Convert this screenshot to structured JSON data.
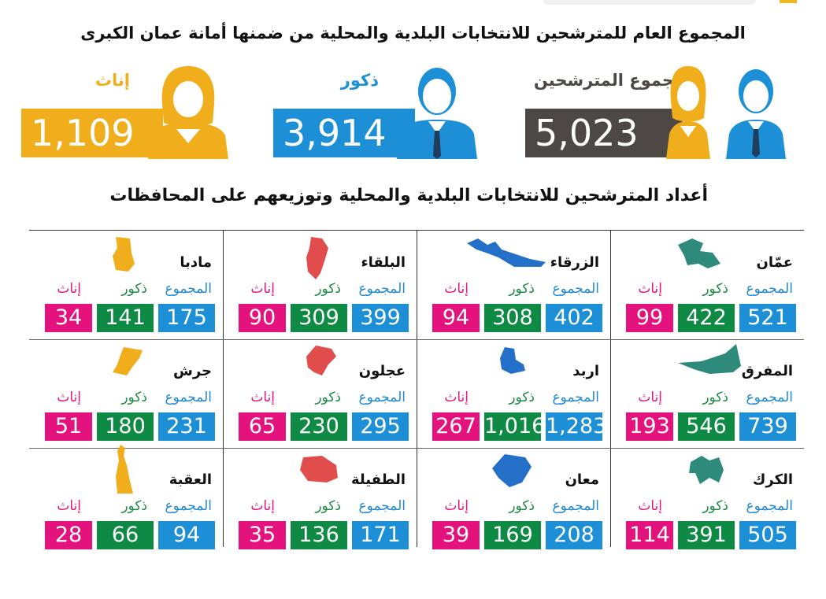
{
  "title": "المجموع العام للمترشحين للانتخابات البلدية والمحلية من ضمنها أمانة عمان الكبرى",
  "subtitle": "أعداد المترشحين للانتخابات البلدية والمحلية وتوزيعهم على المحافظات",
  "summary": {
    "total": {
      "label": "مجموع المترشحين",
      "value": "5,023",
      "color": "#4d4845"
    },
    "males": {
      "label": "ذكور",
      "value": "3,914",
      "color": "#1c8fd6"
    },
    "females": {
      "label": "إناث",
      "value": "1,109",
      "color": "#f0ae1c"
    }
  },
  "column_labels": {
    "total": "المجموع",
    "males": "ذكور",
    "females": "إناث"
  },
  "colors": {
    "total": "#1c8fd6",
    "males": "#0f8a45",
    "females": "#e3127c"
  },
  "chart_data": {
    "type": "table",
    "columns": [
      "المجموع",
      "ذكور",
      "إناث"
    ],
    "rows": [
      {
        "name": "عمّان",
        "total": "521",
        "males": "422",
        "females": "99",
        "icon": "amman-map-icon",
        "color": "#2e8a7a"
      },
      {
        "name": "الزرقاء",
        "total": "402",
        "males": "308",
        "females": "94",
        "icon": "zarqa-map-icon",
        "color": "#2470c8"
      },
      {
        "name": "البلقاء",
        "total": "399",
        "males": "309",
        "females": "90",
        "icon": "balqa-map-icon",
        "color": "#e14d4d"
      },
      {
        "name": "مادبا",
        "total": "175",
        "males": "141",
        "females": "34",
        "icon": "madaba-map-icon",
        "color": "#f0ae1c"
      },
      {
        "name": "المفرق",
        "total": "739",
        "males": "546",
        "females": "193",
        "icon": "mafraq-map-icon",
        "color": "#2e8a7a"
      },
      {
        "name": "اربد",
        "total": "1,283",
        "males": "1,016",
        "females": "267",
        "icon": "irbid-map-icon",
        "color": "#2470c8"
      },
      {
        "name": "عجلون",
        "total": "295",
        "males": "230",
        "females": "65",
        "icon": "ajloun-map-icon",
        "color": "#e14d4d"
      },
      {
        "name": "جرش",
        "total": "231",
        "males": "180",
        "females": "51",
        "icon": "jerash-map-icon",
        "color": "#f0ae1c"
      },
      {
        "name": "الكرك",
        "total": "505",
        "males": "391",
        "females": "114",
        "icon": "karak-map-icon",
        "color": "#2e8a7a"
      },
      {
        "name": "معان",
        "total": "208",
        "males": "169",
        "females": "39",
        "icon": "maan-map-icon",
        "color": "#2470c8"
      },
      {
        "name": "الطفيلة",
        "total": "171",
        "males": "136",
        "females": "35",
        "icon": "tafila-map-icon",
        "color": "#e14d4d"
      },
      {
        "name": "العقبة",
        "total": "94",
        "males": "66",
        "females": "28",
        "icon": "aqaba-map-icon",
        "color": "#f0ae1c"
      }
    ]
  }
}
